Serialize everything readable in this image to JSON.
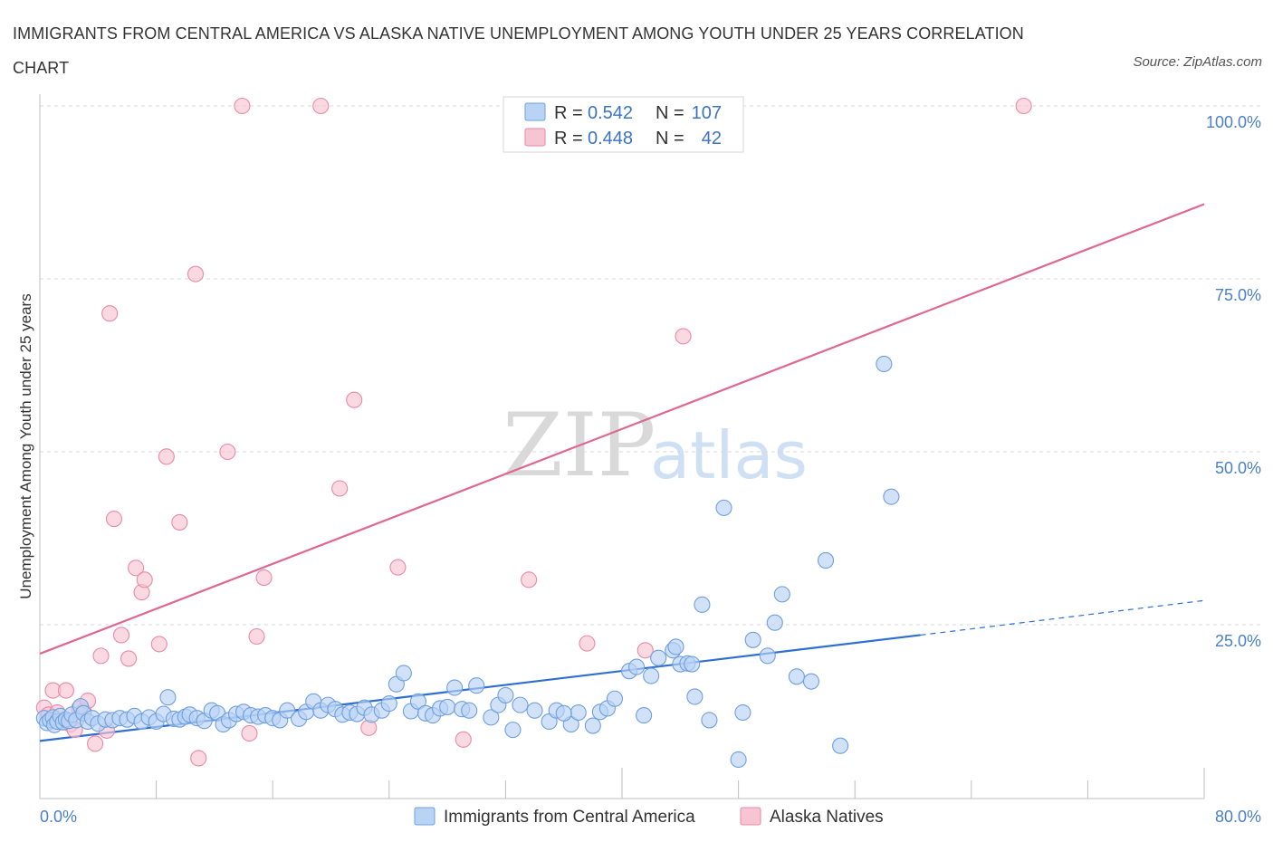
{
  "header": {
    "title": "IMMIGRANTS FROM CENTRAL AMERICA VS ALASKA NATIVE UNEMPLOYMENT AMONG YOUTH UNDER 25 YEARS CORRELATION CHART",
    "source": "Source: ZipAtlas.com"
  },
  "colors": {
    "blue_fill": "#b9d3f5",
    "blue_stroke": "#6f9fe0",
    "blue_line": "#2f6fd1",
    "pink_fill": "#f7c4d4",
    "pink_stroke": "#e88aa8",
    "pink_line": "#e0678f",
    "tick": "#4a7fc9",
    "grid": "#d8d8d8"
  },
  "legend": {
    "r_label": "R =",
    "n_label": "N =",
    "blue_r": "0.542",
    "blue_n": "107",
    "pink_r": "0.448",
    "pink_n": "42"
  },
  "watermark": {
    "zip": "ZIP",
    "atlas": "atlas"
  },
  "chart_data": {
    "type": "scatter",
    "title": "IMMIGRANTS FROM CENTRAL AMERICA VS ALASKA NATIVE UNEMPLOYMENT AMONG YOUTH UNDER 25 YEARS CORRELATION CHART",
    "xlabel": "",
    "ylabel": "Unemployment Among Youth under 25 years",
    "xlim": [
      0,
      80
    ],
    "ylim": [
      0,
      100
    ],
    "x_tick_labels": {
      "min": "0.0%",
      "max": "80.0%"
    },
    "y_tick_labels": [
      "25.0%",
      "50.0%",
      "75.0%",
      "100.0%"
    ],
    "y_ticks": [
      25,
      50,
      75,
      100
    ],
    "series": [
      {
        "name": "Immigrants from Central America",
        "color": "blue",
        "R": 0.542,
        "N": 107,
        "trend": {
          "x0": 0,
          "y0": 8.2,
          "x1": 60.5,
          "y1": 23.5,
          "dashed_to_x": 80,
          "dashed_to_y": 28.5
        },
        "points": [
          [
            0.3,
            11.5
          ],
          [
            0.5,
            10.8
          ],
          [
            0.7,
            11.2
          ],
          [
            0.9,
            11.6
          ],
          [
            1.0,
            10.5
          ],
          [
            1.2,
            11.0
          ],
          [
            1.4,
            11.8
          ],
          [
            1.6,
            10.9
          ],
          [
            1.8,
            11.3
          ],
          [
            2.0,
            11.1
          ],
          [
            2.2,
            12.0
          ],
          [
            2.5,
            11.2
          ],
          [
            2.8,
            13.2
          ],
          [
            3.0,
            12.2
          ],
          [
            3.3,
            11.0
          ],
          [
            3.6,
            11.5
          ],
          [
            4.0,
            10.7
          ],
          [
            4.5,
            11.3
          ],
          [
            5.0,
            11.2
          ],
          [
            5.5,
            11.5
          ],
          [
            6.0,
            11.3
          ],
          [
            6.5,
            11.8
          ],
          [
            7.0,
            11.0
          ],
          [
            7.5,
            11.6
          ],
          [
            8.0,
            11.0
          ],
          [
            8.5,
            12.1
          ],
          [
            8.8,
            14.5
          ],
          [
            9.2,
            11.4
          ],
          [
            9.6,
            11.3
          ],
          [
            10.0,
            11.7
          ],
          [
            10.3,
            12.0
          ],
          [
            10.8,
            11.5
          ],
          [
            11.3,
            11.1
          ],
          [
            11.8,
            12.6
          ],
          [
            12.2,
            12.2
          ],
          [
            12.6,
            10.6
          ],
          [
            13.0,
            11.2
          ],
          [
            13.5,
            12.1
          ],
          [
            14.0,
            12.4
          ],
          [
            14.5,
            11.9
          ],
          [
            15.0,
            11.7
          ],
          [
            15.5,
            11.9
          ],
          [
            16.0,
            11.5
          ],
          [
            16.5,
            11.2
          ],
          [
            17.0,
            12.6
          ],
          [
            17.8,
            11.4
          ],
          [
            18.3,
            12.4
          ],
          [
            18.8,
            13.9
          ],
          [
            19.3,
            12.6
          ],
          [
            19.8,
            13.4
          ],
          [
            20.3,
            12.8
          ],
          [
            20.8,
            12.0
          ],
          [
            21.3,
            12.3
          ],
          [
            21.8,
            12.1
          ],
          [
            22.3,
            13.0
          ],
          [
            22.8,
            12.0
          ],
          [
            23.5,
            12.6
          ],
          [
            24.0,
            13.6
          ],
          [
            24.5,
            16.4
          ],
          [
            25.0,
            18.0
          ],
          [
            25.5,
            12.5
          ],
          [
            26.0,
            13.9
          ],
          [
            26.5,
            12.2
          ],
          [
            27.0,
            11.9
          ],
          [
            27.5,
            12.9
          ],
          [
            28.0,
            13.1
          ],
          [
            28.5,
            15.9
          ],
          [
            29.0,
            12.8
          ],
          [
            29.5,
            12.6
          ],
          [
            30.0,
            16.2
          ],
          [
            31.0,
            11.6
          ],
          [
            31.5,
            13.4
          ],
          [
            32.0,
            14.8
          ],
          [
            32.5,
            9.8
          ],
          [
            33.0,
            13.4
          ],
          [
            34.0,
            12.6
          ],
          [
            35.0,
            11.0
          ],
          [
            35.5,
            12.6
          ],
          [
            36.5,
            10.6
          ],
          [
            37.0,
            12.3
          ],
          [
            38.0,
            10.4
          ],
          [
            38.5,
            12.4
          ],
          [
            39.0,
            12.9
          ],
          [
            39.5,
            14.3
          ],
          [
            40.5,
            18.3
          ],
          [
            41.0,
            18.9
          ],
          [
            41.5,
            11.9
          ],
          [
            42.0,
            17.6
          ],
          [
            42.5,
            20.2
          ],
          [
            43.5,
            21.3
          ],
          [
            44.0,
            19.3
          ],
          [
            44.5,
            19.4
          ],
          [
            45.0,
            14.6
          ],
          [
            45.5,
            27.9
          ],
          [
            46.0,
            11.2
          ],
          [
            47.0,
            41.9
          ],
          [
            48.0,
            5.5
          ],
          [
            48.3,
            12.3
          ],
          [
            49.0,
            22.8
          ],
          [
            50.0,
            20.5
          ],
          [
            50.5,
            25.3
          ],
          [
            51.0,
            29.4
          ],
          [
            52.0,
            17.5
          ],
          [
            53.0,
            16.8
          ],
          [
            54.0,
            34.3
          ],
          [
            55.0,
            7.5
          ],
          [
            58.0,
            62.7
          ],
          [
            58.5,
            43.5
          ],
          [
            43.7,
            21.8
          ],
          [
            44.8,
            19.3
          ],
          [
            36.0,
            12.2
          ]
        ]
      },
      {
        "name": "Alaska Natives",
        "color": "pink",
        "R": 0.448,
        "N": 42,
        "trend": {
          "x0": 0,
          "y0": 20.8,
          "x1": 80,
          "y1": 85.8
        },
        "points": [
          [
            0.3,
            13.0
          ],
          [
            0.6,
            12.0
          ],
          [
            0.9,
            15.5
          ],
          [
            1.2,
            12.3
          ],
          [
            1.5,
            11.0
          ],
          [
            1.8,
            15.5
          ],
          [
            2.1,
            10.6
          ],
          [
            2.4,
            9.8
          ],
          [
            2.7,
            12.9
          ],
          [
            3.0,
            12.5
          ],
          [
            3.3,
            14.0
          ],
          [
            3.8,
            7.8
          ],
          [
            4.2,
            20.5
          ],
          [
            4.6,
            9.7
          ],
          [
            4.8,
            70.0
          ],
          [
            5.1,
            40.3
          ],
          [
            5.6,
            23.5
          ],
          [
            6.1,
            20.1
          ],
          [
            6.6,
            33.2
          ],
          [
            7.0,
            29.7
          ],
          [
            7.2,
            31.5
          ],
          [
            8.2,
            22.2
          ],
          [
            8.7,
            49.3
          ],
          [
            9.6,
            39.8
          ],
          [
            10.7,
            75.7
          ],
          [
            10.9,
            5.7
          ],
          [
            12.9,
            50.0
          ],
          [
            13.9,
            100.0
          ],
          [
            14.4,
            9.3
          ],
          [
            14.9,
            23.3
          ],
          [
            15.4,
            31.8
          ],
          [
            19.3,
            100.0
          ],
          [
            20.6,
            44.7
          ],
          [
            21.6,
            57.5
          ],
          [
            22.6,
            10.1
          ],
          [
            24.6,
            33.3
          ],
          [
            29.1,
            8.4
          ],
          [
            33.6,
            31.5
          ],
          [
            37.6,
            22.3
          ],
          [
            41.6,
            21.3
          ],
          [
            44.2,
            66.7
          ],
          [
            67.6,
            100.0
          ]
        ]
      }
    ]
  },
  "bottom_legend": {
    "blue_label": "Immigrants from Central America",
    "pink_label": "Alaska Natives"
  }
}
